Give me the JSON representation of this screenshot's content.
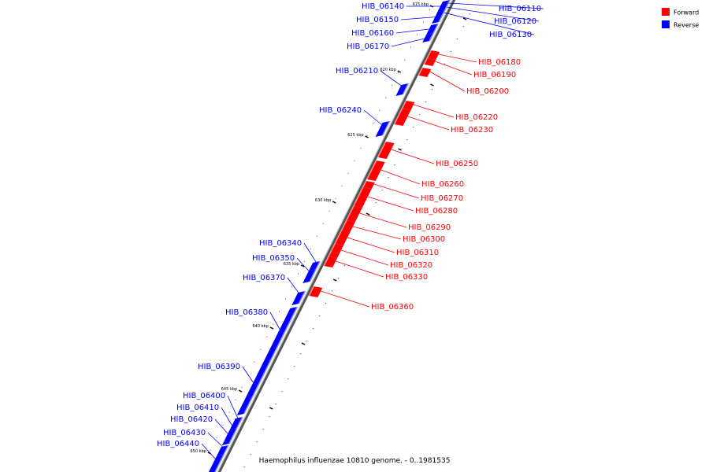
{
  "caption": "Haemophilus influenzae 10810 genome. - 0..1981535",
  "legend": [
    {
      "label": "Forward",
      "color": "#ff0000"
    },
    {
      "label": "Reverse",
      "color": "#0000ff"
    }
  ],
  "colors": {
    "forward": "#ff0000",
    "reverse": "#0000ff",
    "backbone": "#808080"
  },
  "ticks": [
    "615 kbp",
    "620 kbp",
    "625 kbp",
    "630 kbp",
    "635 kbp",
    "640 kbp",
    "645 kbp",
    "650 kbp"
  ],
  "genes": [
    {
      "name": "HIB_06110",
      "strand": "reverse"
    },
    {
      "name": "HIB_06120",
      "strand": "reverse"
    },
    {
      "name": "HIB_06130",
      "strand": "reverse"
    },
    {
      "name": "HIB_06140",
      "strand": "reverse"
    },
    {
      "name": "HIB_06150",
      "strand": "reverse"
    },
    {
      "name": "HIB_06160",
      "strand": "reverse"
    },
    {
      "name": "HIB_06170",
      "strand": "reverse"
    },
    {
      "name": "HIB_06180",
      "strand": "forward"
    },
    {
      "name": "HIB_06190",
      "strand": "forward"
    },
    {
      "name": "HIB_06200",
      "strand": "forward"
    },
    {
      "name": "HIB_06210",
      "strand": "reverse"
    },
    {
      "name": "HIB_06220",
      "strand": "forward"
    },
    {
      "name": "HIB_06230",
      "strand": "forward"
    },
    {
      "name": "HIB_06240",
      "strand": "reverse"
    },
    {
      "name": "HIB_06250",
      "strand": "forward"
    },
    {
      "name": "HIB_06260",
      "strand": "forward"
    },
    {
      "name": "HIB_06270",
      "strand": "forward"
    },
    {
      "name": "HIB_06280",
      "strand": "forward"
    },
    {
      "name": "HIB_06290",
      "strand": "forward"
    },
    {
      "name": "HIB_06300",
      "strand": "forward"
    },
    {
      "name": "HIB_06310",
      "strand": "forward"
    },
    {
      "name": "HIB_06320",
      "strand": "forward"
    },
    {
      "name": "HIB_06330",
      "strand": "forward"
    },
    {
      "name": "HIB_06340",
      "strand": "reverse"
    },
    {
      "name": "HIB_06350",
      "strand": "reverse"
    },
    {
      "name": "HIB_06360",
      "strand": "forward"
    },
    {
      "name": "HIB_06370",
      "strand": "reverse"
    },
    {
      "name": "HIB_06380",
      "strand": "reverse"
    },
    {
      "name": "HIB_06390",
      "strand": "reverse"
    },
    {
      "name": "HIB_06400",
      "strand": "reverse"
    },
    {
      "name": "HIB_06410",
      "strand": "reverse"
    },
    {
      "name": "HIB_06420",
      "strand": "reverse"
    },
    {
      "name": "HIB_06430",
      "strand": "reverse"
    },
    {
      "name": "HIB_06440",
      "strand": "reverse"
    }
  ]
}
